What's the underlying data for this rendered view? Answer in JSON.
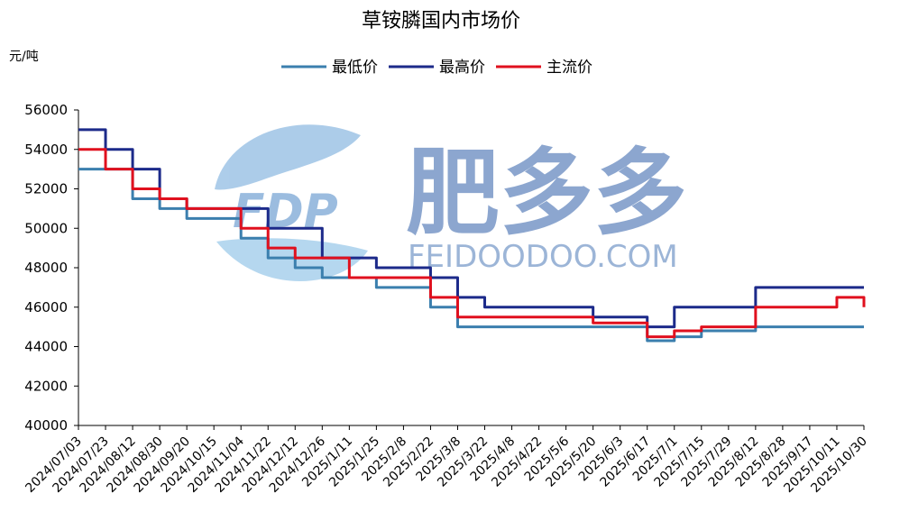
{
  "chart_data": {
    "type": "line",
    "title": "草铵膦国内市场价",
    "ylabel": "元/吨",
    "xlabel": "",
    "ylim": [
      40000,
      56000
    ],
    "yticks": [
      "40000",
      "42000",
      "44000",
      "46000",
      "48000",
      "50000",
      "52000",
      "54000",
      "56000"
    ],
    "legend_position": "top",
    "x": [
      "2024/07/03",
      "2024/07/23",
      "2024/08/12",
      "2024/08/30",
      "2024/09/20",
      "2024/10/15",
      "2024/11/04",
      "2024/11/22",
      "2024/12/12",
      "2024/12/26",
      "2025/1/11",
      "2025/1/25",
      "2025/2/8",
      "2025/2/22",
      "2025/3/8",
      "2025/3/22",
      "2025/4/8",
      "2025/4/22",
      "2025/5/6",
      "2025/5/20",
      "2025/6/3",
      "2025/6/17",
      "2025/7/1",
      "2025/7/15",
      "2025/7/29",
      "2025/8/12",
      "2025/8/28",
      "2025/9/17",
      "2025/10/11",
      "2025/10/30"
    ],
    "series": [
      {
        "name": "最低价",
        "color": "#3b7fae",
        "values": [
          53000,
          53000,
          51500,
          51000,
          50500,
          50500,
          49500,
          48500,
          48000,
          47500,
          47500,
          47000,
          47000,
          46000,
          45000,
          45000,
          45000,
          45000,
          45000,
          45000,
          45000,
          44300,
          44500,
          44800,
          44800,
          45000,
          45000,
          45000,
          45000,
          45000
        ]
      },
      {
        "name": "最高价",
        "color": "#1c2a8a",
        "values": [
          55000,
          54000,
          53000,
          51500,
          51000,
          51000,
          51000,
          50000,
          50000,
          48500,
          48500,
          48000,
          48000,
          47500,
          46500,
          46000,
          46000,
          46000,
          46000,
          45500,
          45500,
          45000,
          46000,
          46000,
          46000,
          47000,
          47000,
          47000,
          47000,
          47000
        ]
      },
      {
        "name": "主流价",
        "color": "#e0101e",
        "values": [
          54000,
          53000,
          52000,
          51500,
          51000,
          51000,
          50000,
          49000,
          48500,
          48500,
          47500,
          47500,
          47500,
          46500,
          45500,
          45500,
          45500,
          45500,
          45500,
          45200,
          45200,
          44500,
          44800,
          45000,
          45000,
          46000,
          46000,
          46000,
          46500,
          46000
        ]
      }
    ]
  },
  "watermark": {
    "brand_cn": "肥多多",
    "brand_en": "FEIDOODOO.COM",
    "logo_text": "FDP"
  }
}
